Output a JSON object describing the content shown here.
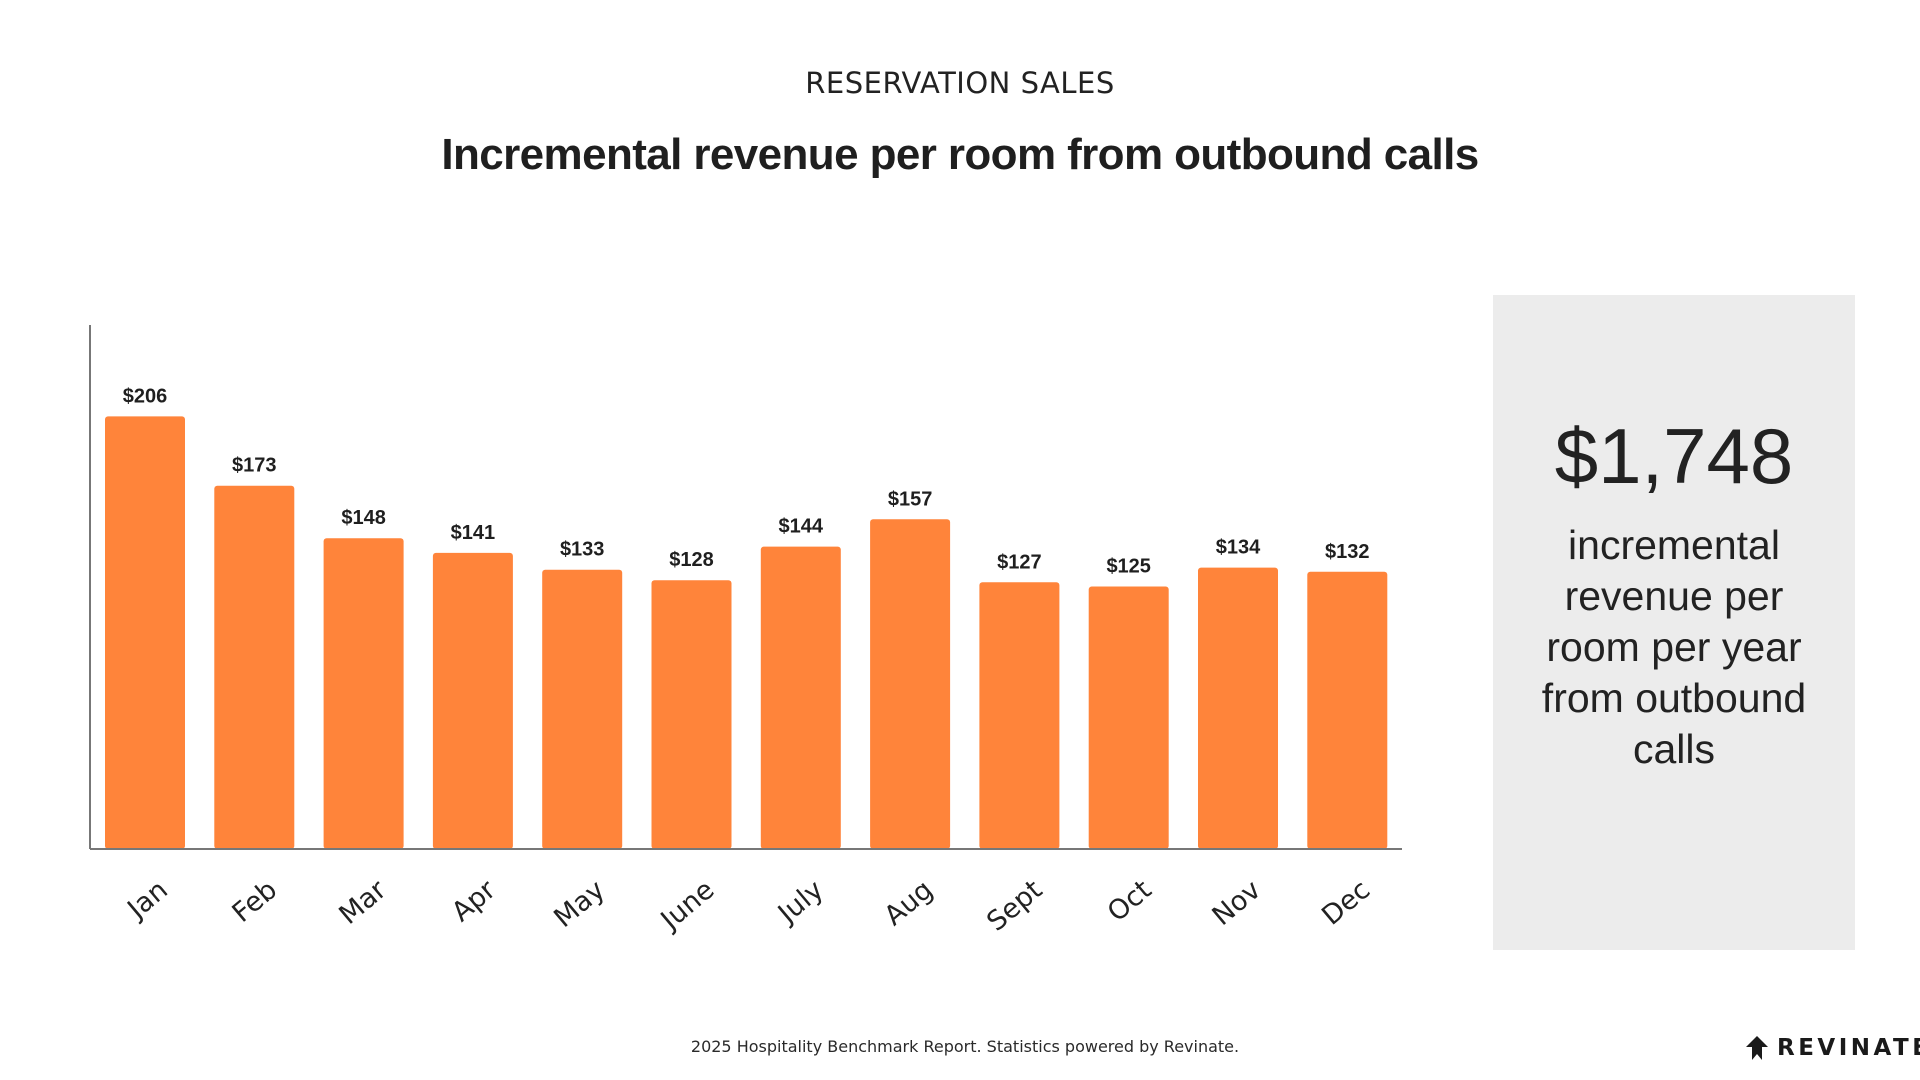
{
  "header": {
    "eyebrow": "RESERVATION SALES",
    "title": "Incremental revenue per room from outbound calls"
  },
  "chart_data": {
    "type": "bar",
    "categories": [
      "Jan",
      "Feb",
      "Mar",
      "Apr",
      "May",
      "June",
      "July",
      "Aug",
      "Sept",
      "Oct",
      "Nov",
      "Dec"
    ],
    "values": [
      206,
      173,
      148,
      141,
      133,
      128,
      144,
      157,
      127,
      125,
      134,
      132
    ],
    "data_labels": [
      "$206",
      "$173",
      "$148",
      "$141",
      "$133",
      "$128",
      "$144",
      "$157",
      "$127",
      "$125",
      "$134",
      "$132"
    ],
    "title": "Incremental revenue per room from outbound calls",
    "xlabel": "",
    "ylabel": "",
    "ylim": [
      0,
      250
    ],
    "grid": false,
    "legend": "none",
    "bar_color": "#ff843a",
    "axis_color": "#777777"
  },
  "stat_panel": {
    "value": "$1,748",
    "caption": "incremental revenue per room per year from outbound calls"
  },
  "footer": {
    "note": "2025 Hospitality Benchmark Report. Statistics powered by Revinate.",
    "brand": "REVINATE"
  }
}
